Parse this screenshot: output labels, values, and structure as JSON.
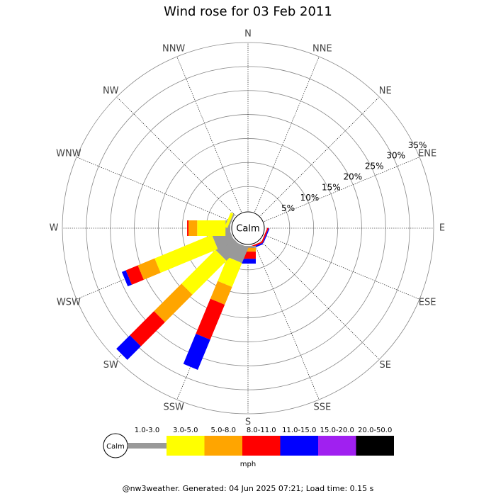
{
  "chart_data": {
    "type": "windrose",
    "title": "Wind rose for 03 Feb 2011",
    "categories": [
      "N",
      "NNE",
      "NE",
      "ENE",
      "E",
      "ESE",
      "SE",
      "SSE",
      "S",
      "SSW",
      "SW",
      "WSW",
      "W",
      "WNW",
      "NW",
      "NNW"
    ],
    "series": [
      {
        "name": "1.0-3.0",
        "color": "#999999",
        "values": [
          0,
          0,
          0,
          0,
          0,
          0,
          0,
          0,
          0.4,
          3.5,
          4.3,
          3.8,
          1.0,
          0.3,
          0,
          0
        ]
      },
      {
        "name": "3.0-5.0",
        "color": "#ffff00",
        "values": [
          0,
          0,
          0,
          0,
          0,
          0,
          0,
          0,
          0,
          5.4,
          10.0,
          12.9,
          5.9,
          0.6,
          0,
          0
        ]
      },
      {
        "name": "5.0-8.0",
        "color": "#ffa500",
        "values": [
          0,
          0,
          0,
          0,
          0,
          0,
          0,
          0,
          0.8,
          4.0,
          8.1,
          3.8,
          1.8,
          0,
          0,
          0
        ]
      },
      {
        "name": "8.0-11.0",
        "color": "#ff0000",
        "values": [
          0,
          0,
          0,
          0,
          0,
          0.3,
          0,
          0.3,
          1.5,
          7.9,
          7.1,
          2.7,
          0.3,
          0,
          0,
          0
        ]
      },
      {
        "name": "11.0-15.0",
        "color": "#0000ff",
        "values": [
          0,
          0,
          0,
          0,
          0,
          0.2,
          0,
          0.3,
          1.0,
          6.8,
          4.0,
          0.9,
          0,
          0,
          0,
          0
        ]
      },
      {
        "name": "15.0-20.0",
        "color": "#a020f0",
        "values": [
          0,
          0,
          0,
          0,
          0,
          0,
          0,
          0,
          0,
          0,
          0,
          0,
          0,
          0,
          0,
          0
        ]
      },
      {
        "name": "20.0-50.0",
        "color": "#000000",
        "values": [
          0,
          0,
          0,
          0,
          0,
          0,
          0,
          0,
          0,
          0,
          0,
          0,
          0,
          0,
          0,
          0
        ]
      }
    ],
    "ylim": [
      0,
      35
    ],
    "yticks": [
      {
        "value": 5,
        "label": "5%"
      },
      {
        "value": 10,
        "label": "10%"
      },
      {
        "value": 15,
        "label": "15%"
      },
      {
        "value": 20,
        "label": "20%"
      },
      {
        "value": 25,
        "label": "25%"
      },
      {
        "value": 30,
        "label": "30%"
      },
      {
        "value": 35,
        "label": "35%"
      }
    ],
    "calm_label": "Calm",
    "unit": "mph",
    "footer": "@nw3weather. Generated: 04 Jun 2025 07:21; Load time: 0.15 s"
  }
}
